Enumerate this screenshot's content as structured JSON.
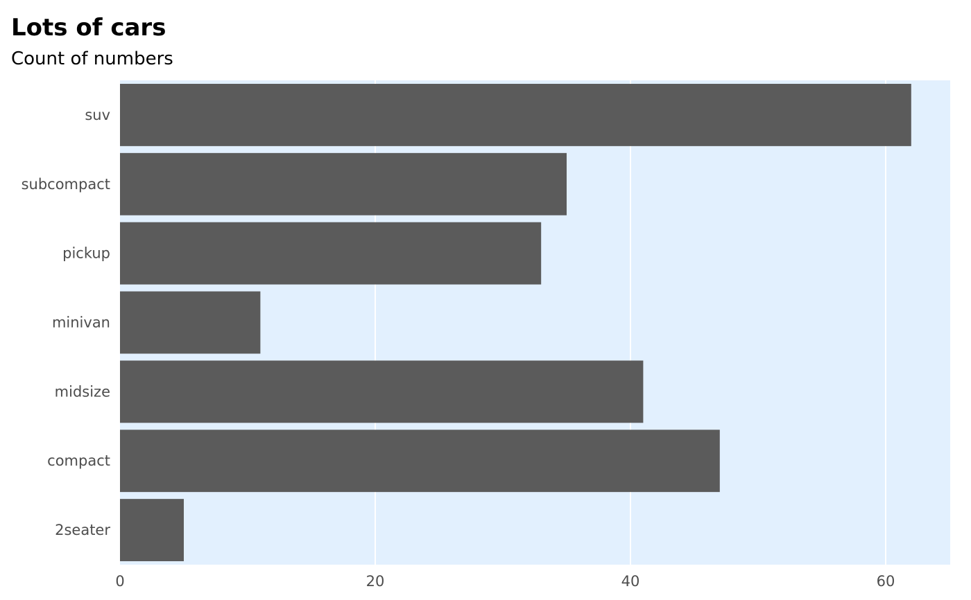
{
  "chart_data": {
    "type": "bar",
    "orientation": "horizontal",
    "title": "Lots of cars",
    "subtitle": "Count of numbers",
    "xlabel": "",
    "ylabel": "",
    "categories": [
      "2seater",
      "compact",
      "midsize",
      "minivan",
      "pickup",
      "subcompact",
      "suv"
    ],
    "values": [
      5,
      47,
      41,
      11,
      33,
      35,
      62
    ],
    "xlim": [
      0,
      65
    ],
    "x_ticks": [
      0,
      20,
      40,
      60
    ],
    "grid": true,
    "legend": "none"
  },
  "colors": {
    "panel_background": "#e2f0fe",
    "bar_fill": "#5b5b5b",
    "grid_line": "#ffffff",
    "tick_text": "#4d4d4d"
  }
}
